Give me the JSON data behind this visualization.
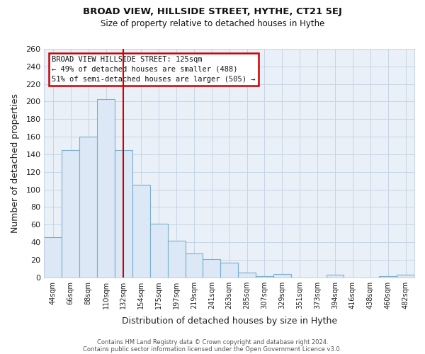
{
  "title": "BROAD VIEW, HILLSIDE STREET, HYTHE, CT21 5EJ",
  "subtitle": "Size of property relative to detached houses in Hythe",
  "xlabel": "Distribution of detached houses by size in Hythe",
  "ylabel": "Number of detached properties",
  "categories": [
    "44sqm",
    "66sqm",
    "88sqm",
    "110sqm",
    "132sqm",
    "154sqm",
    "175sqm",
    "197sqm",
    "219sqm",
    "241sqm",
    "263sqm",
    "285sqm",
    "307sqm",
    "329sqm",
    "351sqm",
    "373sqm",
    "394sqm",
    "416sqm",
    "438sqm",
    "460sqm",
    "482sqm"
  ],
  "values": [
    46,
    145,
    160,
    203,
    145,
    105,
    61,
    42,
    27,
    21,
    17,
    5,
    1,
    4,
    0,
    0,
    3,
    0,
    0,
    1,
    3
  ],
  "bar_color": "#dce8f5",
  "bar_edge_color": "#7aaed0",
  "vline_x_index": 4,
  "vline_color": "#cc0000",
  "annotation_title": "BROAD VIEW HILLSIDE STREET: 125sqm",
  "annotation_line1": "← 49% of detached houses are smaller (488)",
  "annotation_line2": "51% of semi-detached houses are larger (505) →",
  "annotation_box_color": "#ffffff",
  "annotation_box_edge_color": "#cc0000",
  "ylim": [
    0,
    260
  ],
  "yticks": [
    0,
    20,
    40,
    60,
    80,
    100,
    120,
    140,
    160,
    180,
    200,
    220,
    240,
    260
  ],
  "footer_line1": "Contains HM Land Registry data © Crown copyright and database right 2024.",
  "footer_line2": "Contains public sector information licensed under the Open Government Licence v3.0.",
  "background_color": "#ffffff",
  "plot_bg_color": "#eaf0f8",
  "grid_color": "#c5d5e5"
}
